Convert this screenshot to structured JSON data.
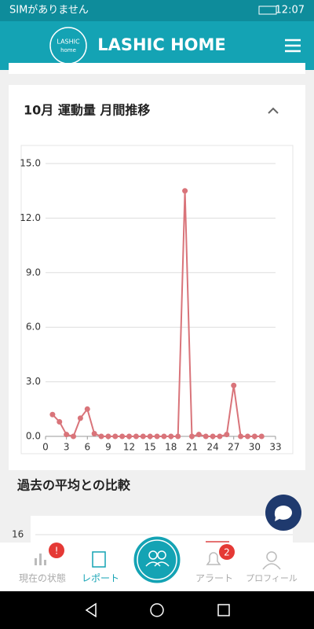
{
  "status_bar": {
    "carrier": "SIMがありません",
    "time": "12:07"
  },
  "header": {
    "logo_top": "LASHIC",
    "logo_bottom": "home",
    "title": "LASHIC HOME"
  },
  "card": {
    "title": "10月 運動量 月間推移"
  },
  "chart_data": {
    "type": "line",
    "color": "#d9747a",
    "x": [
      1,
      2,
      3,
      4,
      5,
      6,
      7,
      8,
      9,
      10,
      11,
      12,
      13,
      14,
      15,
      16,
      17,
      18,
      19,
      20,
      21,
      22,
      23,
      24,
      25,
      26,
      27,
      28,
      29,
      30,
      31
    ],
    "values": [
      1.2,
      0.8,
      0.1,
      0,
      1.0,
      1.5,
      0.15,
      0,
      0,
      0,
      0,
      0,
      0,
      0,
      0,
      0,
      0,
      0,
      0,
      13.5,
      0,
      0.1,
      0,
      0,
      0,
      0.1,
      2.8,
      0,
      0,
      0,
      0
    ],
    "xlim": [
      0,
      33
    ],
    "xticks": [
      0,
      3,
      6,
      9,
      12,
      15,
      18,
      21,
      24,
      27,
      30,
      33
    ],
    "ylim": [
      0,
      15
    ],
    "yticks": [
      {
        "value": 0,
        "label": "0.0"
      },
      {
        "value": 3,
        "label": "3.0"
      },
      {
        "value": 6,
        "label": "6.0"
      },
      {
        "value": 9,
        "label": "9.0"
      },
      {
        "value": 12,
        "label": "12.0"
      },
      {
        "value": 15,
        "label": "15.0"
      }
    ],
    "grid": true
  },
  "section2": {
    "title": "過去の平均との比較",
    "first_tick": "16"
  },
  "nav": {
    "items": [
      "現在の状態",
      "レポート",
      "アラート",
      "プロフィール"
    ],
    "status_badge": "!",
    "alert_badge": "2"
  }
}
